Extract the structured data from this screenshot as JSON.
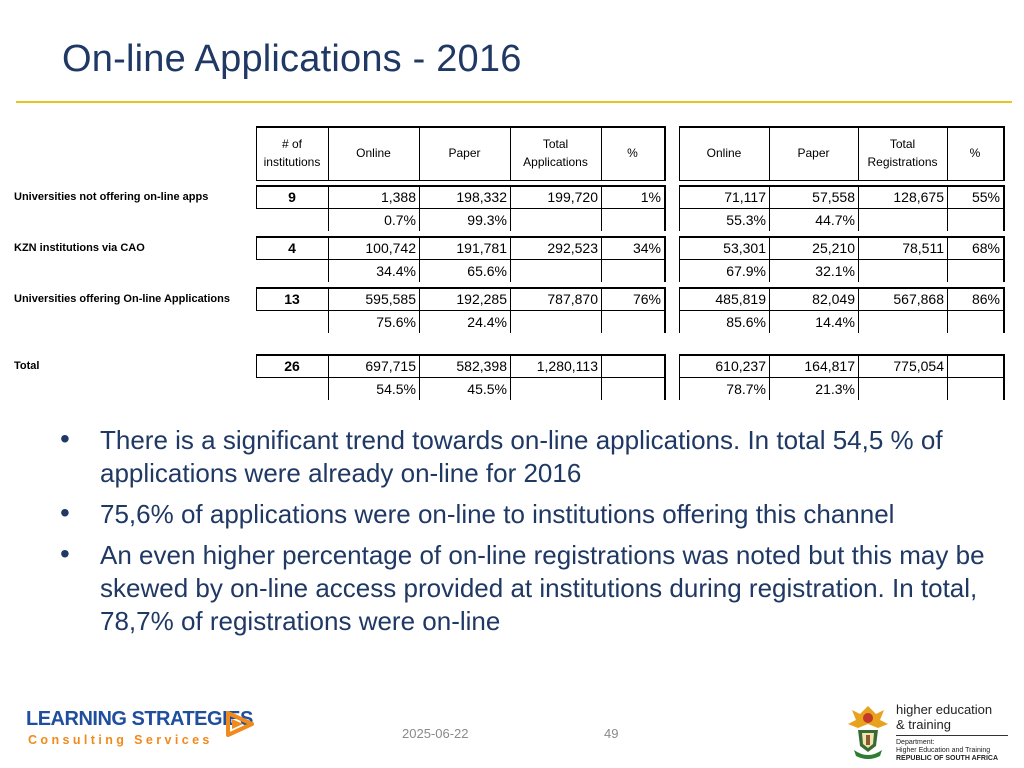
{
  "slide": {
    "title": "On-line Applications - 2016",
    "date": "2025-06-22",
    "page": "49"
  },
  "table": {
    "headers": {
      "institutions": "# of institutions",
      "online": "Online",
      "paper": "Paper",
      "total_applications": "Total Applications",
      "pct": "%",
      "online2": "Online",
      "paper2": "Paper",
      "total_registrations": "Total Registrations",
      "pct2": "%"
    },
    "rows": [
      {
        "label": "Universities not offering on-line apps",
        "institutions": "9",
        "online": "1,388",
        "paper": "198,332",
        "total_app": "199,720",
        "pct_app": "1%",
        "online_reg": "71,117",
        "paper_reg": "57,558",
        "total_reg": "128,675",
        "pct_reg": "55%",
        "online_pct": "0.7%",
        "paper_pct": "99.3%",
        "online_reg_pct": "55.3%",
        "paper_reg_pct": "44.7%"
      },
      {
        "label": "KZN institutions via CAO",
        "institutions": "4",
        "online": "100,742",
        "paper": "191,781",
        "total_app": "292,523",
        "pct_app": "34%",
        "online_reg": "53,301",
        "paper_reg": "25,210",
        "total_reg": "78,511",
        "pct_reg": "68%",
        "online_pct": "34.4%",
        "paper_pct": "65.6%",
        "online_reg_pct": "67.9%",
        "paper_reg_pct": "32.1%"
      },
      {
        "label": "Universities offering On-line Applications",
        "institutions": "13",
        "online": "595,585",
        "paper": "192,285",
        "total_app": "787,870",
        "pct_app": "76%",
        "online_reg": "485,819",
        "paper_reg": "82,049",
        "total_reg": "567,868",
        "pct_reg": "86%",
        "online_pct": "75.6%",
        "paper_pct": "24.4%",
        "online_reg_pct": "85.6%",
        "paper_reg_pct": "14.4%"
      },
      {
        "label": "Total",
        "institutions": "26",
        "online": "697,715",
        "paper": "582,398",
        "total_app": "1,280,113",
        "pct_app": "",
        "online_reg": "610,237",
        "paper_reg": "164,817",
        "total_reg": "775,054",
        "pct_reg": "",
        "online_pct": "54.5%",
        "paper_pct": "45.5%",
        "online_reg_pct": "78.7%",
        "paper_reg_pct": "21.3%"
      }
    ]
  },
  "bullets": [
    "There is a significant trend towards on-line applications.   In total 54,5 % of applications were already on-line for 2016",
    "75,6% of applications were on-line to institutions offering this channel",
    "An even higher percentage of on-line registrations was noted but this may be skewed by on-line access provided at institutions during registration.   In total, 78,7% of registrations were on-line"
  ],
  "logos": {
    "learning_strategies": {
      "main": "LEARNING STRATEGIES",
      "sub": "Consulting Services"
    },
    "dhet": {
      "line1": "higher education",
      "line2": "& training",
      "dept1": "Department:",
      "dept2": "Higher Education and Training",
      "dept3": "REPUBLIC OF SOUTH AFRICA"
    }
  },
  "colors": {
    "title": "#1f3864",
    "rule": "#e8c420",
    "ls_blue": "#1f4e9e",
    "ls_orange": "#f08a1d"
  }
}
